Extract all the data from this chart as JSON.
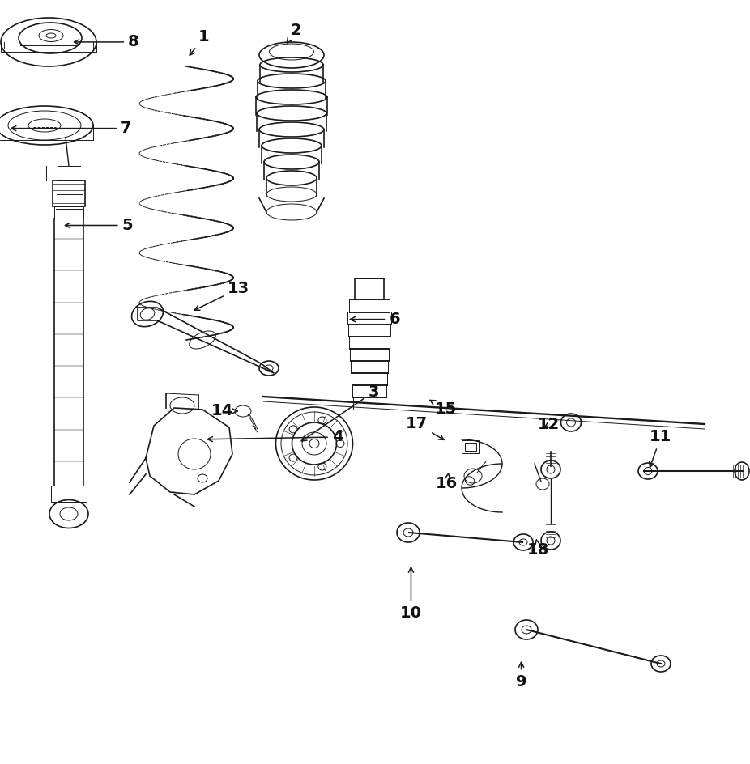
{
  "bg_color": "#ffffff",
  "line_color": "#1a1a1a",
  "label_color": "#111111",
  "figsize": [
    9.26,
    9.44
  ],
  "dpi": 100,
  "parts_labels": {
    "8": [
      0.175,
      0.944,
      0.095,
      0.944
    ],
    "7": [
      0.158,
      0.865,
      0.025,
      0.865
    ],
    "1": [
      0.267,
      0.955,
      0.248,
      0.935
    ],
    "2": [
      0.39,
      0.958,
      0.375,
      0.94
    ],
    "5": [
      0.165,
      0.705,
      0.082,
      0.705
    ],
    "6": [
      0.51,
      0.637,
      0.455,
      0.637
    ],
    "13": [
      0.31,
      0.678,
      0.267,
      0.658
    ],
    "14": [
      0.287,
      0.623,
      0.308,
      0.623
    ],
    "4": [
      0.445,
      0.568,
      0.29,
      0.555
    ],
    "3": [
      0.49,
      0.505,
      0.4,
      0.505
    ],
    "15": [
      0.594,
      0.592,
      0.575,
      0.575
    ],
    "12": [
      0.728,
      0.608,
      0.725,
      0.593
    ],
    "11": [
      0.877,
      0.551,
      0.862,
      0.565
    ],
    "17": [
      0.556,
      0.545,
      0.573,
      0.545
    ],
    "16": [
      0.596,
      0.487,
      0.596,
      0.502
    ],
    "18": [
      0.712,
      0.435,
      0.7,
      0.45
    ],
    "10": [
      0.545,
      0.37,
      0.545,
      0.39
    ],
    "9": [
      0.693,
      0.268,
      0.693,
      0.285
    ]
  }
}
